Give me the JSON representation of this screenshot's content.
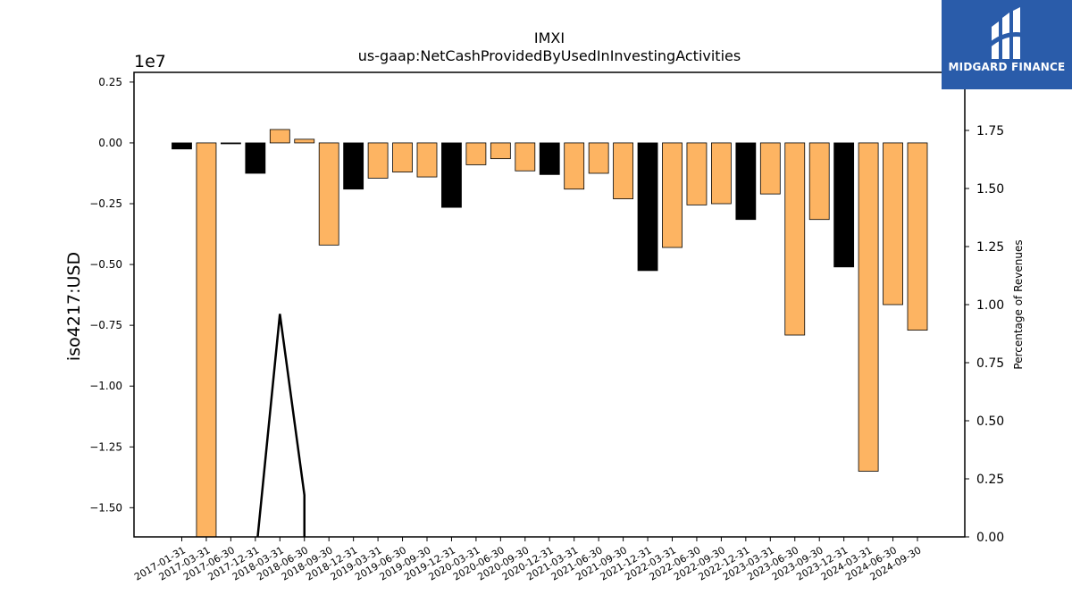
{
  "chart_data": {
    "type": "bar",
    "title": "IMXI",
    "subtitle": "us-gaap:NetCashProvidedByUsedInInvestingActivities",
    "ylabel": "iso4217:USD",
    "y_offset_label": "1e7",
    "ylabel_right": "Percentage of Revenues",
    "ylim": [
      -1.62,
      0.29
    ],
    "ylim_right": [
      0.0,
      2.0
    ],
    "left_ticks": [
      "0.25",
      "0.00",
      "−0.25",
      "−0.50",
      "−0.75",
      "−1.00",
      "−1.25",
      "−1.50"
    ],
    "right_ticks": [
      "1.75",
      "1.50",
      "1.25",
      "1.00",
      "0.75",
      "0.50",
      "0.25",
      "0.00"
    ],
    "categories": [
      "2017-01-31",
      "2017-03-31",
      "2017-06-30",
      "2017-12-31",
      "2018-03-31",
      "2018-06-30",
      "2018-09-30",
      "2018-12-31",
      "2019-03-31",
      "2019-06-30",
      "2019-09-30",
      "2019-12-31",
      "2020-03-31",
      "2020-06-30",
      "2020-09-30",
      "2020-12-31",
      "2021-03-31",
      "2021-06-30",
      "2021-09-30",
      "2021-12-31",
      "2022-03-31",
      "2022-06-30",
      "2022-09-30",
      "2022-12-31",
      "2023-03-31",
      "2023-06-30",
      "2023-09-30",
      "2023-12-31",
      "2024-03-31",
      "2024-06-30",
      "2024-09-30"
    ],
    "values": [
      -0.025,
      -1.62,
      -0.003,
      -0.125,
      0.055,
      0.015,
      -0.42,
      -0.19,
      -0.145,
      -0.12,
      -0.14,
      -0.265,
      -0.09,
      -0.065,
      -0.115,
      -0.13,
      -0.19,
      -0.125,
      -0.23,
      -0.525,
      -0.43,
      -0.255,
      -0.25,
      -0.315,
      -0.21,
      -0.79,
      -0.315,
      -0.51,
      -1.35,
      -0.665,
      -0.77
    ],
    "bar_colors": [
      "#000000",
      "#fdb462",
      "#000000",
      "#000000",
      "#fdb462",
      "#fdb462",
      "#fdb462",
      "#000000",
      "#fdb462",
      "#fdb462",
      "#fdb462",
      "#000000",
      "#fdb462",
      "#fdb462",
      "#fdb462",
      "#000000",
      "#fdb462",
      "#fdb462",
      "#fdb462",
      "#000000",
      "#fdb462",
      "#fdb462",
      "#fdb462",
      "#000000",
      "#fdb462",
      "#fdb462",
      "#fdb462",
      "#000000",
      "#fdb462",
      "#fdb462",
      "#fdb462"
    ],
    "line_series": {
      "x": [
        "2017-12-31",
        "2018-03-31",
        "2018-06-30"
      ],
      "values": [
        -0.1,
        0.96,
        0.18
      ]
    },
    "grid": false,
    "legend": "none"
  },
  "logo": {
    "text": "MIDGARD FINANCE",
    "color": "#2a5caa"
  }
}
